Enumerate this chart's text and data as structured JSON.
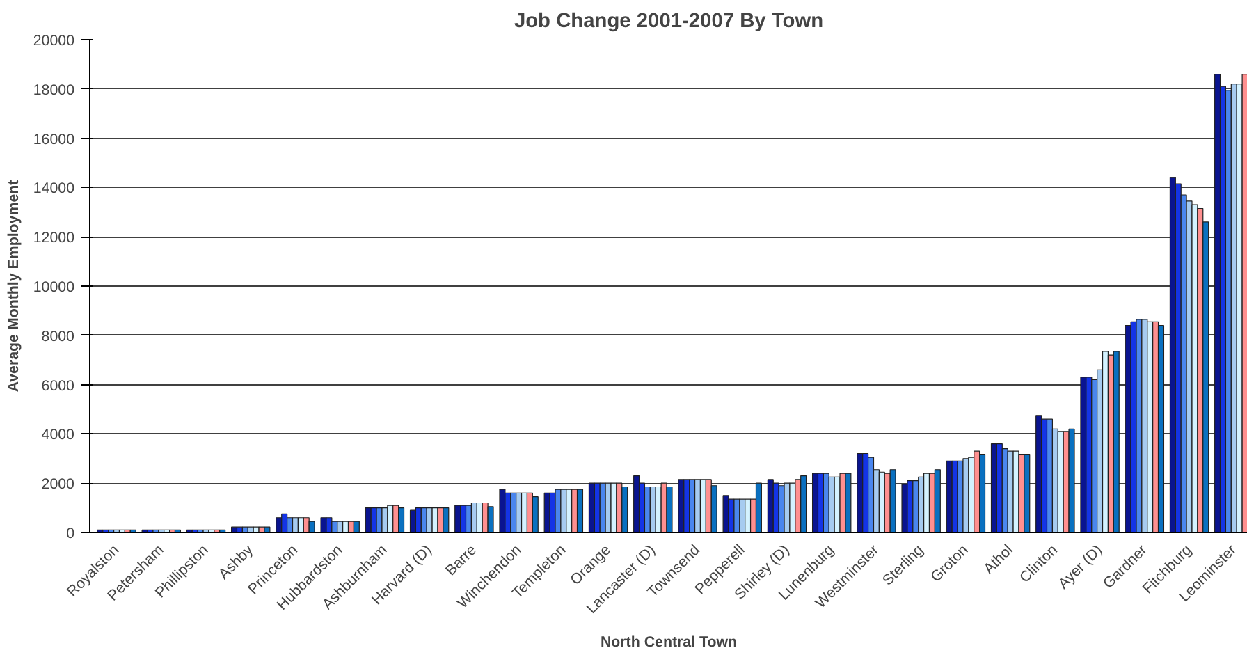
{
  "chart_data": {
    "type": "bar",
    "title": "Job Change 2001-2007 By Town",
    "xlabel": "North Central Town",
    "ylabel": "Average Monthly Employment",
    "categories": [
      "Royalston",
      "Petersham",
      "Phillipston",
      "Ashby",
      "Princeton",
      "Hubbardston",
      "Ashburnham",
      "Harvard (D)",
      "Barre",
      "Winchendon",
      "Templeton",
      "Orange",
      "Lancaster (D)",
      "Townsend",
      "Pepperell",
      "Shirley (D)",
      "Lunenburg",
      "Westminster",
      "Sterling",
      "Groton",
      "Athol",
      "Clinton",
      "Ayer (D)",
      "Gardner",
      "Fitchburg",
      "Leominster"
    ],
    "series": [
      {
        "color": "#0a1490",
        "values": [
          100,
          100,
          100,
          220,
          600,
          600,
          1000,
          900,
          1100,
          1750,
          1600,
          2000,
          2300,
          2150,
          1500,
          2150,
          2400,
          3200,
          1950,
          2900,
          3600,
          4750,
          6300,
          8400,
          14400,
          18600
        ]
      },
      {
        "color": "#1434e6",
        "values": [
          100,
          100,
          100,
          220,
          750,
          600,
          1000,
          1000,
          1100,
          1600,
          1600,
          2000,
          2000,
          2150,
          1350,
          2000,
          2400,
          3200,
          2100,
          2900,
          3600,
          4600,
          6300,
          8550,
          14150,
          18100
        ]
      },
      {
        "color": "#4a86ee",
        "values": [
          100,
          100,
          100,
          220,
          600,
          450,
          1000,
          1000,
          1100,
          1600,
          1750,
          2000,
          1850,
          2150,
          1350,
          1900,
          2400,
          3050,
          2100,
          2900,
          3400,
          4600,
          6200,
          8650,
          13700,
          17950
        ]
      },
      {
        "color": "#a6cbf0",
        "values": [
          100,
          100,
          100,
          220,
          600,
          450,
          1000,
          1000,
          1200,
          1600,
          1750,
          2000,
          1850,
          2150,
          1350,
          2000,
          2250,
          2550,
          2250,
          3000,
          3300,
          4200,
          6600,
          8650,
          13450,
          18200
        ]
      },
      {
        "color": "#d4f2ff",
        "values": [
          100,
          100,
          100,
          220,
          600,
          450,
          1100,
          1000,
          1200,
          1600,
          1750,
          2000,
          1850,
          2150,
          1350,
          2000,
          2250,
          2450,
          2400,
          3050,
          3300,
          4100,
          7350,
          8550,
          13300,
          18200
        ]
      },
      {
        "color": "#ff9090",
        "values": [
          100,
          100,
          100,
          220,
          600,
          450,
          1100,
          1000,
          1200,
          1600,
          1750,
          2000,
          2000,
          2150,
          1350,
          2150,
          2400,
          2400,
          2400,
          3300,
          3150,
          4100,
          7200,
          8550,
          13150,
          18600
        ]
      },
      {
        "color": "#0a70c0",
        "values": [
          100,
          100,
          100,
          220,
          450,
          450,
          1000,
          1000,
          1050,
          1450,
          1750,
          1850,
          1850,
          1900,
          2000,
          2300,
          2400,
          2550,
          2550,
          3150,
          3150,
          4200,
          7350,
          8400,
          12600,
          null
        ]
      }
    ],
    "ylim": [
      0,
      20000
    ],
    "yticks": [
      0,
      2000,
      4000,
      6000,
      8000,
      10000,
      12000,
      14000,
      16000,
      18000,
      20000
    ],
    "grid": "y"
  }
}
